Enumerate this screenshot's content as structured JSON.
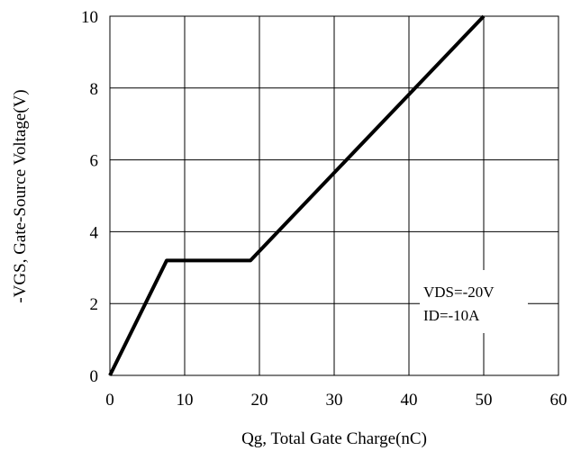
{
  "chart_data": {
    "type": "line",
    "title": "",
    "xlabel": "Qg, Total Gate Charge(nC)",
    "ylabel": "-VGS, Gate-Source Voltage(V)",
    "xlim": [
      0,
      60
    ],
    "ylim": [
      0,
      10
    ],
    "xticks": [
      0,
      10,
      20,
      30,
      40,
      50,
      60
    ],
    "yticks": [
      0,
      2,
      4,
      6,
      8,
      10
    ],
    "grid": true,
    "series": [
      {
        "x": [
          0,
          7.6,
          18.8,
          50
        ],
        "y": [
          0,
          3.2,
          3.2,
          10
        ]
      }
    ],
    "annotations": [
      "VDS=-20V",
      "ID=-10A"
    ]
  }
}
